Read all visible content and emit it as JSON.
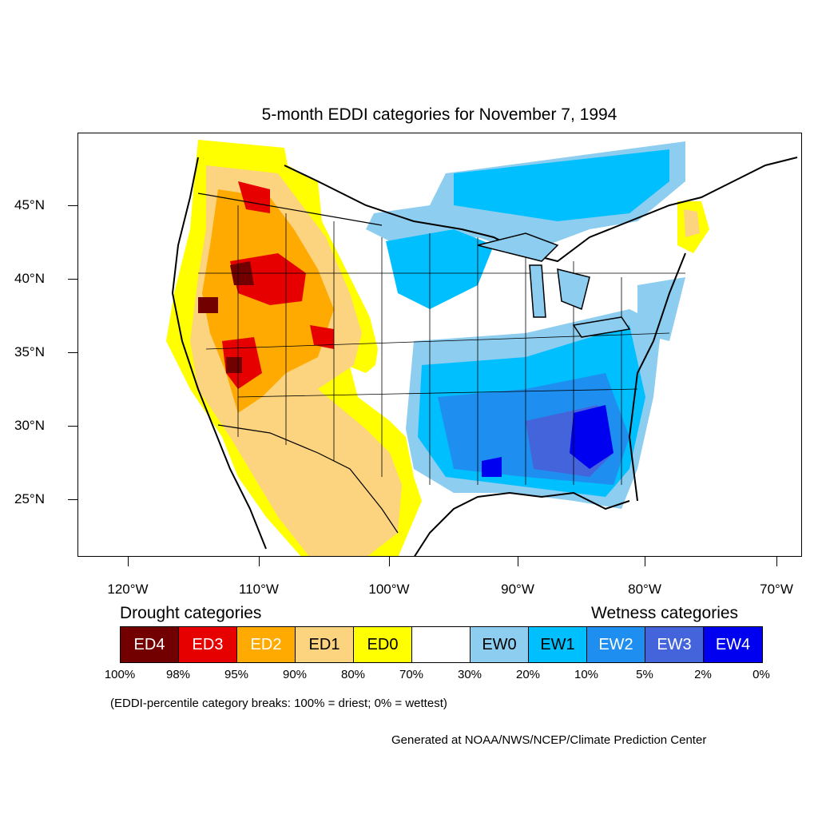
{
  "title": "5-month EDDI categories for November 7, 1994",
  "lat_labels": [
    "45°N",
    "40°N",
    "35°N",
    "30°N",
    "25°N"
  ],
  "lon_labels": [
    "120°W",
    "110°W",
    "100°W",
    "90°W",
    "80°W",
    "70°W"
  ],
  "legend": {
    "drought_heading": "Drought categories",
    "wetness_heading": "Wetness categories",
    "categories": [
      {
        "label": "ED4",
        "color": "#730000",
        "text_color": "#ffffff"
      },
      {
        "label": "ED3",
        "color": "#e60000",
        "text_color": "#ffffff"
      },
      {
        "label": "ED2",
        "color": "#ffaa00",
        "text_color": "#ffffff"
      },
      {
        "label": "ED1",
        "color": "#fcd37f",
        "text_color": "#000000"
      },
      {
        "label": "ED0",
        "color": "#ffff00",
        "text_color": "#000000"
      },
      {
        "label": "",
        "color": "#ffffff",
        "text_color": "#000000"
      },
      {
        "label": "EW0",
        "color": "#8ccdf0",
        "text_color": "#000000"
      },
      {
        "label": "EW1",
        "color": "#00bfff",
        "text_color": "#000000"
      },
      {
        "label": "EW2",
        "color": "#1e8ff0",
        "text_color": "#ffffff"
      },
      {
        "label": "EW3",
        "color": "#4464dc",
        "text_color": "#ffffff"
      },
      {
        "label": "EW4",
        "color": "#0000f0",
        "text_color": "#ffffff"
      }
    ],
    "percent_breaks": [
      "100%",
      "98%",
      "95%",
      "90%",
      "80%",
      "70%",
      "30%",
      "20%",
      "10%",
      "5%",
      "2%",
      "0%"
    ]
  },
  "note": "(EDDI-percentile category breaks: 100% = driest; 0% = wettest)",
  "credit": "Generated at NOAA/NWS/NCEP/Climate Prediction Center"
}
